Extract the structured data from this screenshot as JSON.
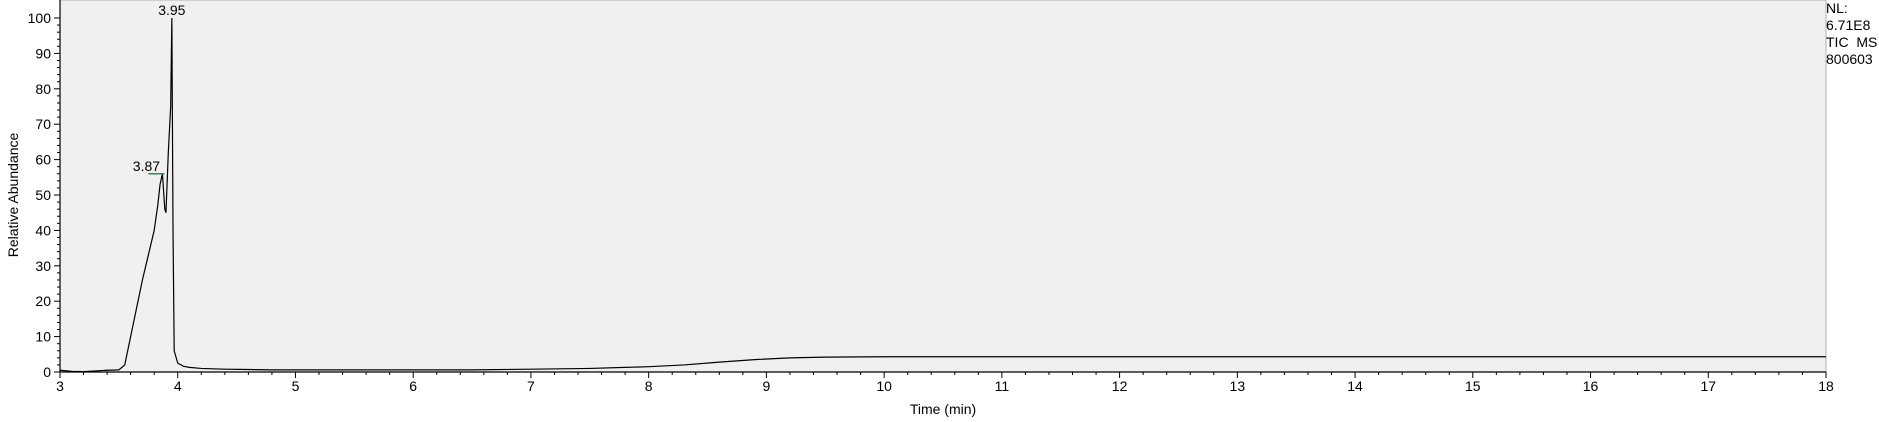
{
  "colors": {
    "plot_background": "#f0f0f0",
    "trace": "#000000",
    "peak_marker": "#2e8b57",
    "axis": "#000000"
  },
  "side_info": {
    "nl_label": "NL:",
    "nl_value": "6.71E8",
    "trace_label": "TIC  MS",
    "file_id": "800603"
  },
  "chart_data": {
    "type": "line",
    "title": "",
    "xlabel": "Time (min)",
    "ylabel": "Relative Abundance",
    "xlim": [
      3,
      18
    ],
    "ylim": [
      0,
      100
    ],
    "xticks": [
      3,
      4,
      5,
      6,
      7,
      8,
      9,
      10,
      11,
      12,
      13,
      14,
      15,
      16,
      17,
      18
    ],
    "yticks": [
      0,
      10,
      20,
      30,
      40,
      50,
      60,
      70,
      80,
      90,
      100
    ],
    "grid": false,
    "series": [
      {
        "x": [
          3.0,
          3.1,
          3.2,
          3.3,
          3.4,
          3.5,
          3.55,
          3.6,
          3.65,
          3.7,
          3.75,
          3.8,
          3.83,
          3.85,
          3.87,
          3.89,
          3.9,
          3.92,
          3.94,
          3.95,
          3.96,
          3.97,
          4.0,
          4.05,
          4.1,
          4.2,
          4.4,
          4.6,
          4.8,
          5.0,
          5.5,
          6.0,
          6.5,
          7.0,
          7.5,
          7.8,
          8.0,
          8.3,
          8.6,
          8.9,
          9.2,
          9.5,
          10.0,
          11.0,
          12.0,
          13.0,
          14.0,
          15.0,
          16.0,
          17.0,
          18.0
        ],
        "y": [
          0.5,
          0.2,
          0.1,
          0.3,
          0.5,
          0.6,
          2,
          10,
          18,
          26,
          33,
          40,
          47,
          53,
          56,
          46,
          45,
          62,
          75,
          100,
          40,
          6,
          2.5,
          1.6,
          1.3,
          1.0,
          0.8,
          0.7,
          0.6,
          0.6,
          0.6,
          0.6,
          0.6,
          0.8,
          1.0,
          1.3,
          1.5,
          2.0,
          2.8,
          3.5,
          4.0,
          4.2,
          4.3,
          4.3,
          4.3,
          4.3,
          4.3,
          4.3,
          4.3,
          4.3,
          4.3
        ]
      }
    ],
    "peak_labels": [
      {
        "text": "3.95",
        "x": 3.95,
        "y": 100
      },
      {
        "text": "3.87",
        "x": 3.87,
        "y": 56
      }
    ]
  }
}
